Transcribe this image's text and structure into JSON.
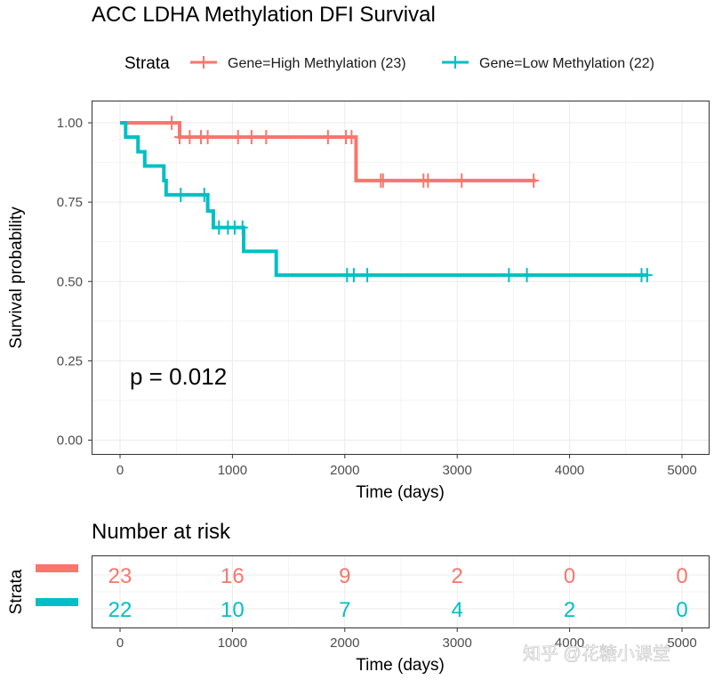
{
  "title": "ACC LDHA Methylation DFI Survival",
  "legend": {
    "title": "Strata",
    "items": [
      {
        "label": "Gene=High Methylation (23)",
        "color": "#F8766D"
      },
      {
        "label": "Gene=Low Methylation (22)",
        "color": "#00BFC4"
      }
    ]
  },
  "pvalue_text": "p = 0.012",
  "risk_table": {
    "title": "Number at risk",
    "ylabel": "Strata",
    "xlabel": "Time (days)",
    "rows": [
      {
        "color": "#F8766D",
        "values": [
          "23",
          "16",
          "9",
          "2",
          "0",
          "0"
        ]
      },
      {
        "color": "#00BFC4",
        "values": [
          "22",
          "10",
          "7",
          "4",
          "2",
          "0"
        ]
      }
    ]
  },
  "watermark": "知乎 @花糖小课堂",
  "chart_data": {
    "type": "line",
    "title": "ACC LDHA Methylation DFI Survival",
    "xlabel": "Time (days)",
    "ylabel": "Survival probability",
    "xlim": [
      0,
      5000
    ],
    "ylim": [
      0,
      1
    ],
    "x_ticks": [
      "0",
      "1000",
      "2000",
      "3000",
      "4000",
      "5000"
    ],
    "y_ticks": [
      "0.00",
      "0.25",
      "0.50",
      "0.75",
      "1.00"
    ],
    "grid": true,
    "legend_position": "top",
    "series": [
      {
        "name": "Gene=High Methylation (23)",
        "color": "#F8766D",
        "steps": [
          [
            0,
            1.0
          ],
          [
            530,
            0.955
          ],
          [
            2100,
            0.818
          ],
          [
            3700,
            0.818
          ]
        ],
        "censors": [
          [
            460,
            1.0
          ],
          [
            530,
            0.955
          ],
          [
            620,
            0.955
          ],
          [
            720,
            0.955
          ],
          [
            780,
            0.955
          ],
          [
            1050,
            0.955
          ],
          [
            1170,
            0.955
          ],
          [
            1300,
            0.955
          ],
          [
            1850,
            0.955
          ],
          [
            2010,
            0.955
          ],
          [
            2060,
            0.955
          ],
          [
            2320,
            0.818
          ],
          [
            2340,
            0.818
          ],
          [
            2700,
            0.818
          ],
          [
            2740,
            0.818
          ],
          [
            3040,
            0.818
          ],
          [
            3680,
            0.818
          ]
        ]
      },
      {
        "name": "Gene=Low Methylation (22)",
        "color": "#00BFC4",
        "steps": [
          [
            0,
            1.0
          ],
          [
            50,
            0.955
          ],
          [
            160,
            0.909
          ],
          [
            220,
            0.864
          ],
          [
            390,
            0.818
          ],
          [
            410,
            0.773
          ],
          [
            780,
            0.722
          ],
          [
            830,
            0.67
          ],
          [
            1100,
            0.595
          ],
          [
            1390,
            0.52
          ],
          [
            4700,
            0.52
          ]
        ],
        "censors": [
          [
            540,
            0.773
          ],
          [
            750,
            0.773
          ],
          [
            880,
            0.67
          ],
          [
            960,
            0.67
          ],
          [
            1020,
            0.67
          ],
          [
            1090,
            0.67
          ],
          [
            2020,
            0.52
          ],
          [
            2080,
            0.52
          ],
          [
            2200,
            0.52
          ],
          [
            3460,
            0.52
          ],
          [
            3620,
            0.52
          ],
          [
            4640,
            0.52
          ],
          [
            4690,
            0.52
          ]
        ]
      }
    ],
    "annotations": [
      "p = 0.012"
    ]
  }
}
